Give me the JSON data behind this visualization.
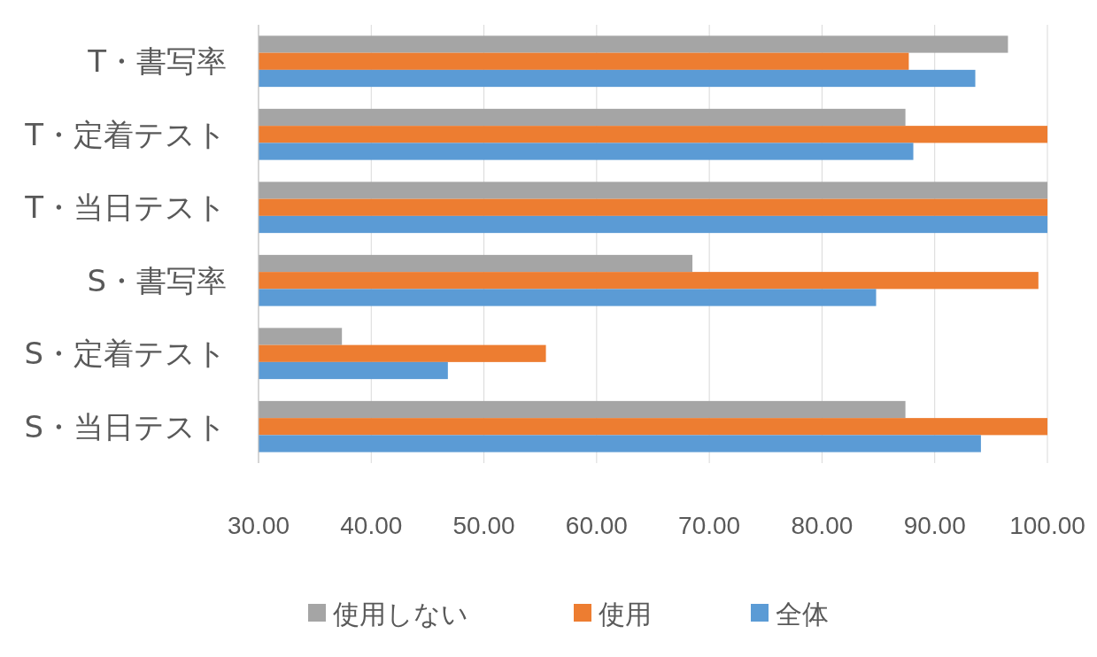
{
  "chart_data": {
    "type": "bar",
    "orientation": "horizontal",
    "categories": [
      "T・書写率",
      "T・定着テスト",
      "T・当日テスト",
      "S・書写率",
      "S・定着テスト",
      "S・当日テスト"
    ],
    "series": [
      {
        "name": "使用しない",
        "color": "#a5a5a5",
        "values": [
          96.5,
          87.4,
          100,
          68.5,
          37.4,
          87.4
        ]
      },
      {
        "name": "使用",
        "color": "#ed7d31",
        "values": [
          87.7,
          100,
          100,
          99.2,
          55.5,
          100
        ]
      },
      {
        "name": "全体",
        "color": "#5b9bd5",
        "values": [
          93.6,
          88.1,
          100,
          84.8,
          46.8,
          94.1
        ]
      }
    ],
    "xlim": [
      30,
      100
    ],
    "xticks": [
      {
        "value": 30,
        "label": "30.00"
      },
      {
        "value": 40,
        "label": "40.00"
      },
      {
        "value": 50,
        "label": "50.00"
      },
      {
        "value": 60,
        "label": "60.00"
      },
      {
        "value": 70,
        "label": "70.00"
      },
      {
        "value": 80,
        "label": "80.00"
      },
      {
        "value": 90,
        "label": "90.00"
      },
      {
        "value": 100,
        "label": "100.00"
      }
    ],
    "grid": "x",
    "legend": "bottom"
  }
}
